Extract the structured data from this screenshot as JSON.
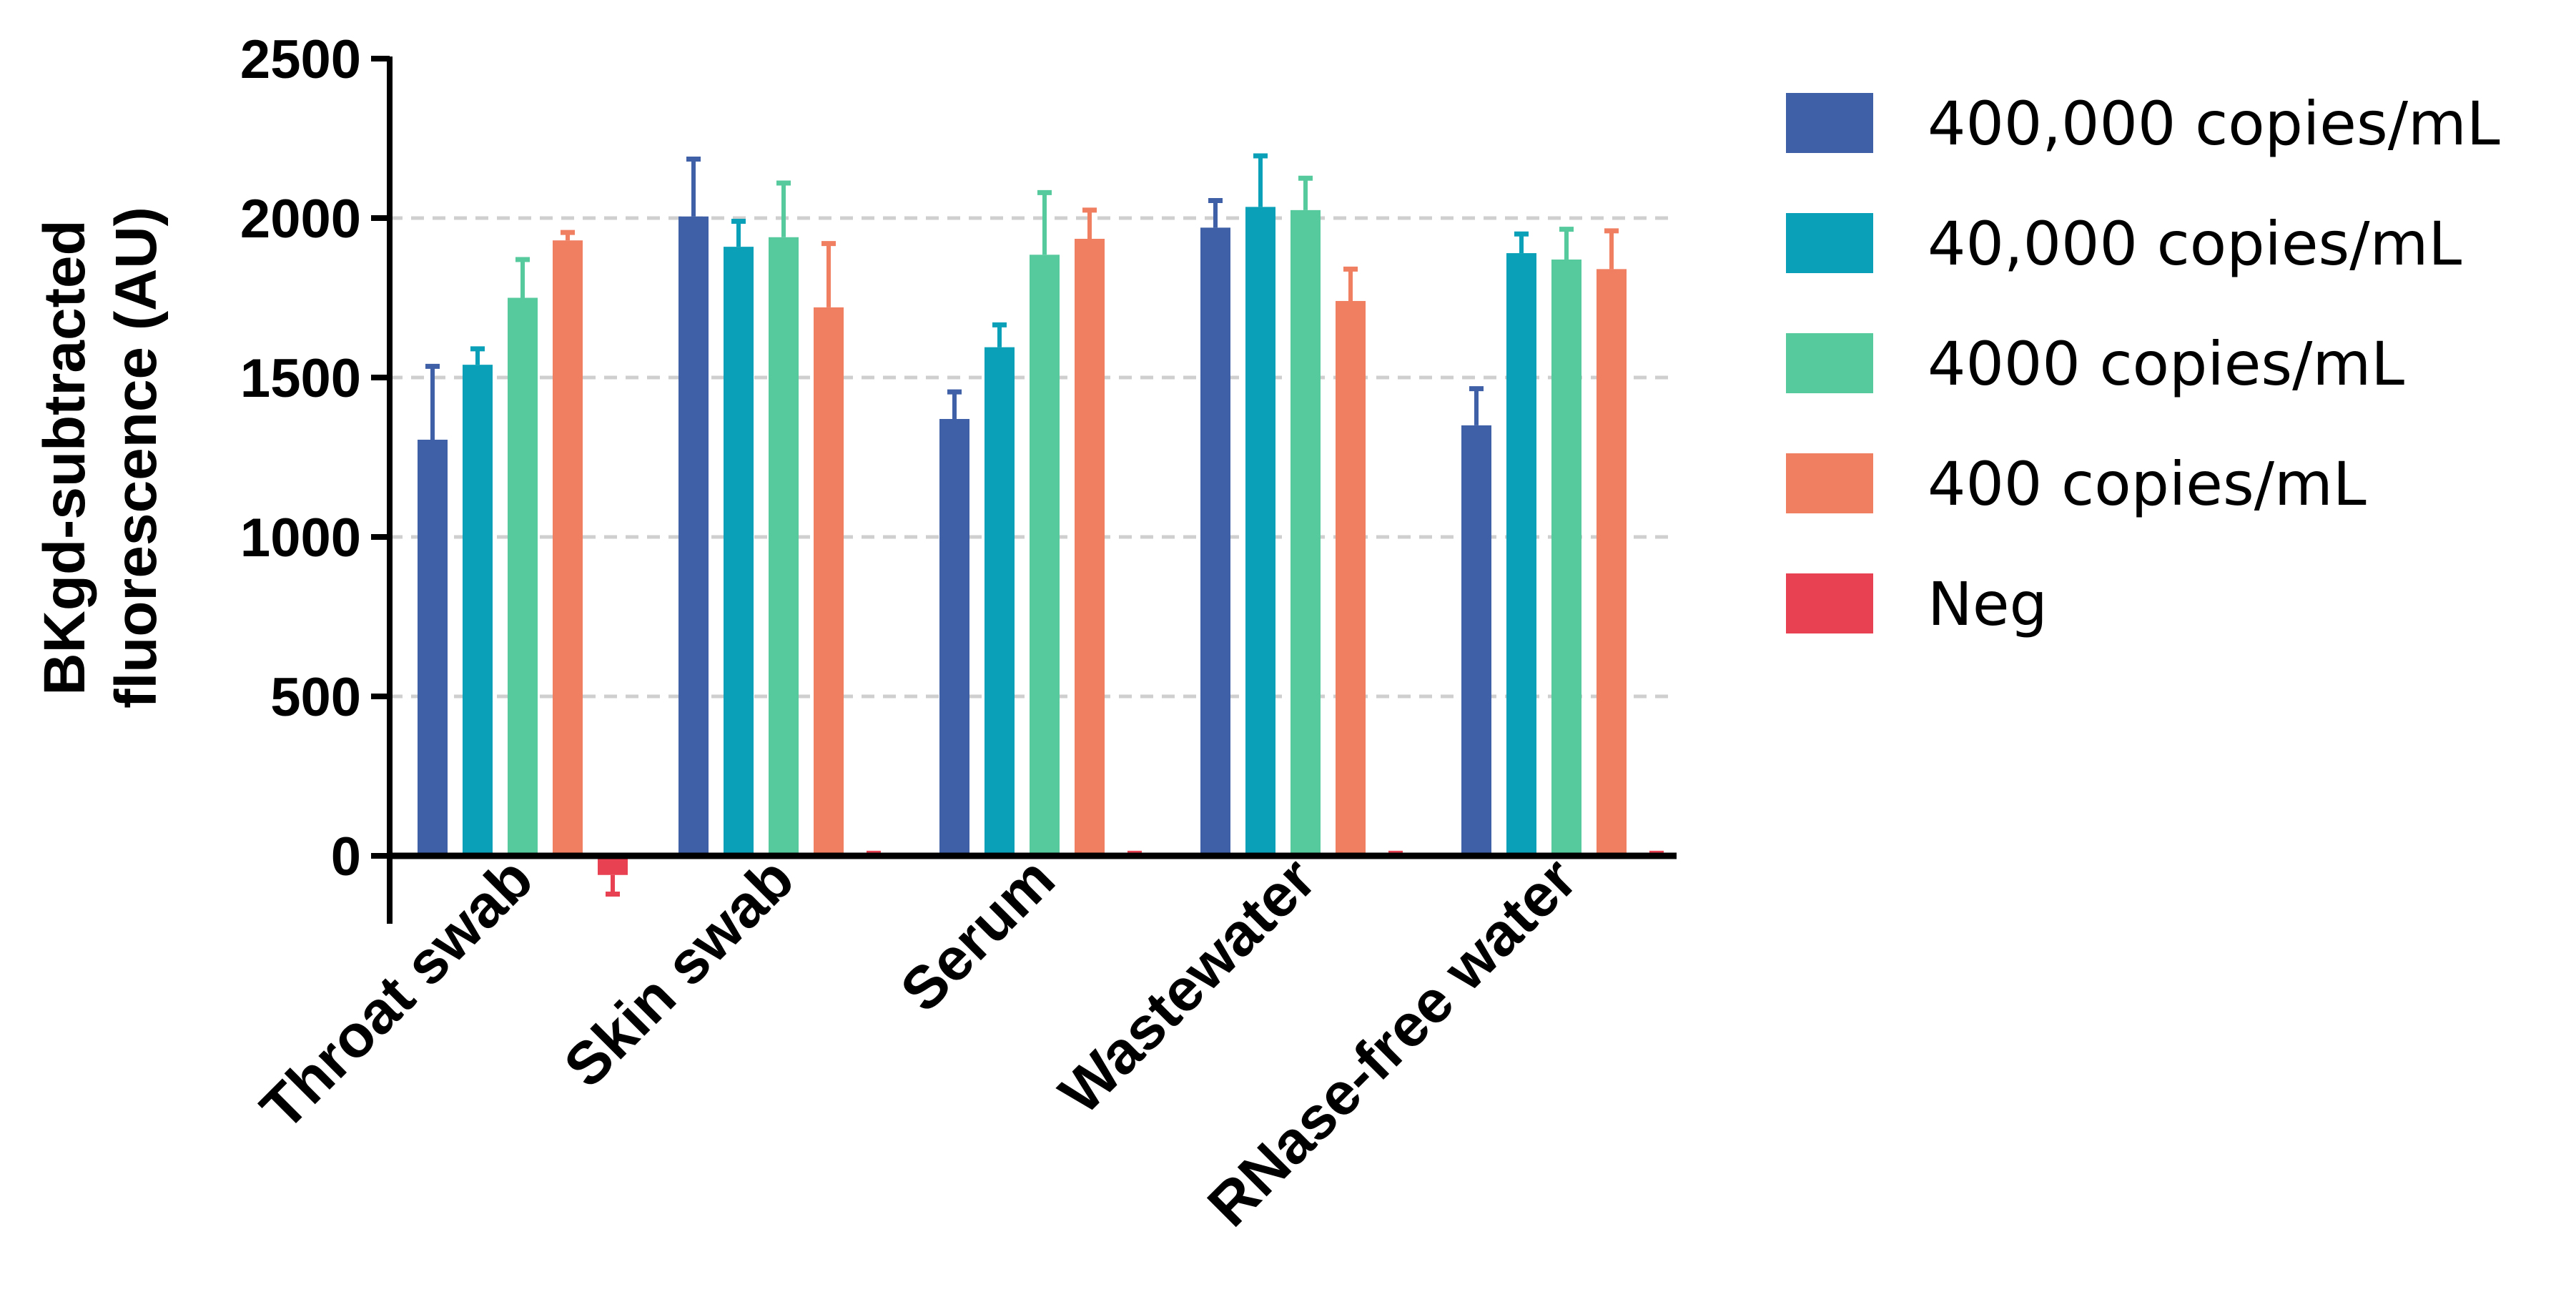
{
  "chart_data": {
    "type": "bar",
    "ylabel": [
      "BKgd-subtracted",
      "fluorescence (AU)"
    ],
    "ylim": [
      0,
      2500
    ],
    "yticks": [
      0,
      500,
      1000,
      1500,
      2000,
      2500
    ],
    "grid": true,
    "legend_position": "right",
    "categories": [
      "Throat swab",
      "Skin swab",
      "Serum",
      "Wastewater",
      "RNase-free water"
    ],
    "series": [
      {
        "name": "400,000 copies/mL",
        "color": "#3f5fa6",
        "values": [
          1305,
          2005,
          1370,
          1970,
          1350
        ],
        "errors": [
          230,
          180,
          85,
          85,
          115
        ]
      },
      {
        "name": "40,000 copies/mL",
        "color": "#0aa0b7",
        "values": [
          1540,
          1910,
          1595,
          2035,
          1890
        ],
        "errors": [
          50,
          80,
          70,
          160,
          60
        ]
      },
      {
        "name": "4000 copies/mL",
        "color": "#56c99d",
        "values": [
          1750,
          1940,
          1885,
          2025,
          1870
        ],
        "errors": [
          120,
          170,
          195,
          100,
          95
        ]
      },
      {
        "name": "400 copies/mL",
        "color": "#f07e61",
        "values": [
          1930,
          1720,
          1935,
          1740,
          1840
        ],
        "errors": [
          25,
          200,
          90,
          100,
          120
        ]
      },
      {
        "name": "Neg",
        "color": "#e84152",
        "values": [
          -60,
          0,
          0,
          0,
          0
        ],
        "errors": [
          60,
          8,
          8,
          8,
          8
        ]
      }
    ]
  }
}
